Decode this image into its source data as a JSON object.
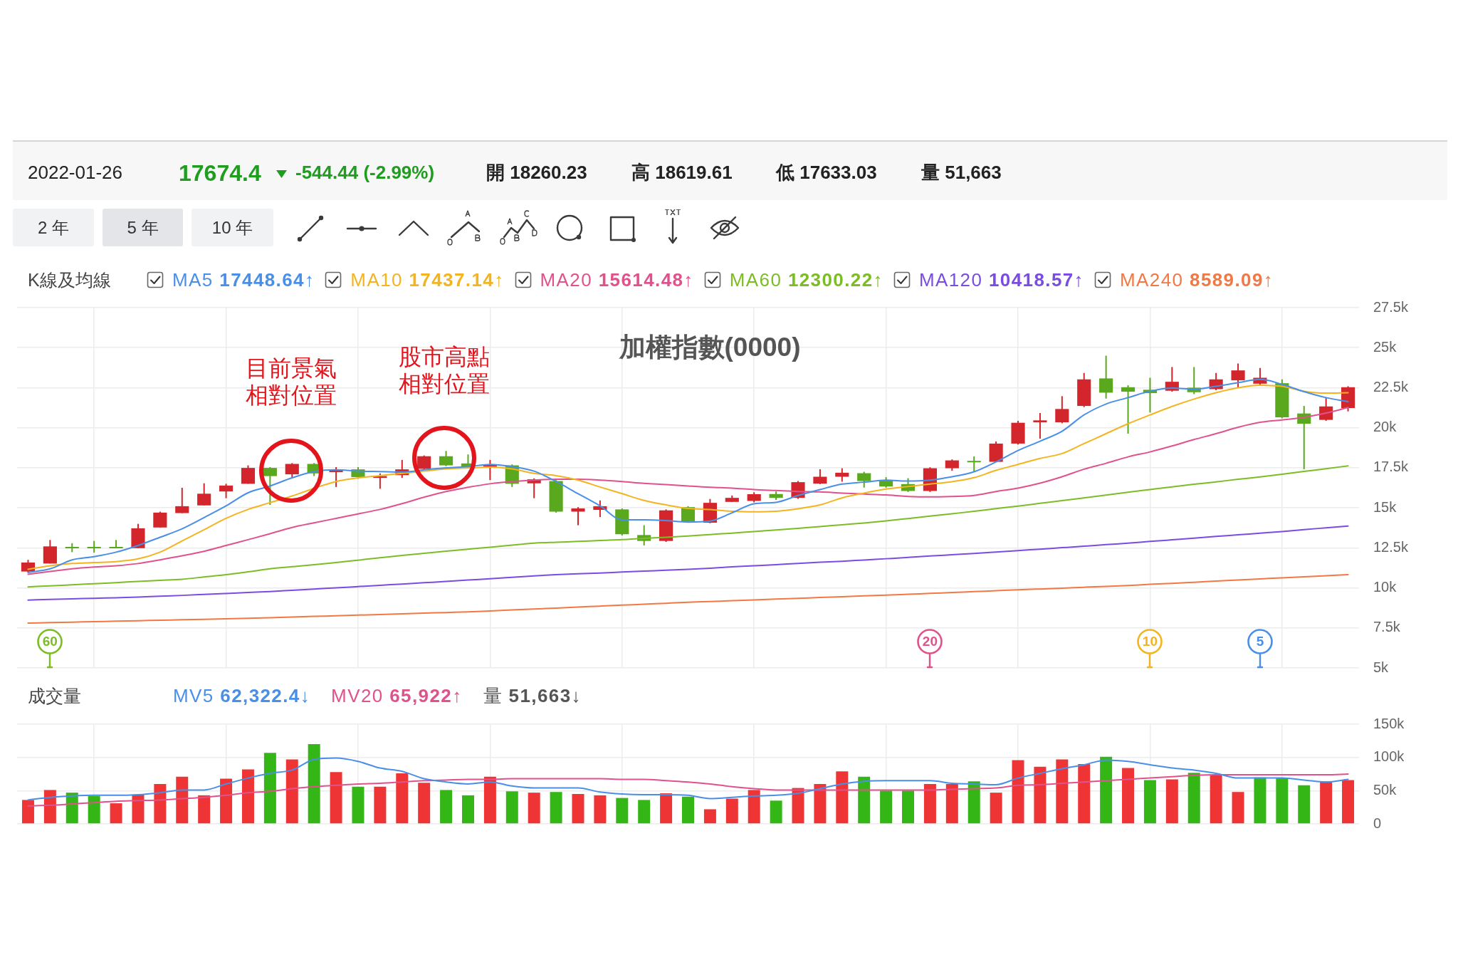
{
  "chart_data": [
    {
      "type": "other",
      "annotations": [
        "2022-01-26",
        "17674.4",
        "-544.44 (-2.99%)",
        "開 18260.23",
        "高 18619.61",
        "低 17633.03",
        "量 51,663",
        "2 年",
        "5 年",
        "10 年"
      ]
    },
    {
      "type": "candlestick",
      "title": "加權指數(0000)",
      "legend_title": "K線及均線",
      "legend": "top left",
      "grid": true,
      "marker": "none",
      "tick_labels": "y",
      "categories": [
        null,
        null,
        null,
        null,
        null,
        null,
        null,
        null,
        null,
        null,
        null,
        null,
        null,
        null,
        null,
        null,
        null,
        null,
        null,
        null,
        null,
        null,
        null,
        null,
        null,
        null,
        null,
        null,
        null,
        null,
        null,
        null,
        null,
        null,
        null,
        null,
        null,
        null,
        null,
        null,
        null,
        null,
        null,
        null,
        null,
        null,
        null,
        null,
        null,
        null,
        null,
        null,
        null,
        null,
        null,
        null,
        null,
        null,
        null,
        null,
        null
      ],
      "ohlc": [
        [
          11020,
          11750,
          10960,
          11580
        ],
        [
          11520,
          12990,
          11520,
          12590
        ],
        [
          12560,
          12790,
          12230,
          12500
        ],
        [
          12560,
          12930,
          12200,
          12500
        ],
        [
          12560,
          12990,
          12480,
          12500
        ],
        [
          12480,
          14000,
          12480,
          13720
        ],
        [
          13770,
          14760,
          13770,
          14700
        ],
        [
          14670,
          16250,
          14670,
          15100
        ],
        [
          15150,
          16530,
          15150,
          15880
        ],
        [
          16020,
          16500,
          15600,
          16390
        ],
        [
          16500,
          17650,
          16500,
          17490
        ],
        [
          17490,
          17540,
          15180,
          16980
        ],
        [
          17090,
          17790,
          16870,
          17740
        ],
        [
          17740,
          17790,
          16980,
          17150
        ],
        [
          17230,
          17540,
          16300,
          17370
        ],
        [
          17400,
          17540,
          16810,
          16920
        ],
        [
          16870,
          17150,
          16190,
          16980
        ],
        [
          17040,
          17990,
          16870,
          17400
        ],
        [
          17430,
          18270,
          17370,
          18220
        ],
        [
          18220,
          18550,
          17600,
          17650
        ],
        [
          17770,
          18330,
          17490,
          17540
        ],
        [
          17570,
          17990,
          16730,
          17710
        ],
        [
          17650,
          17710,
          16300,
          16500
        ],
        [
          16530,
          16840,
          15600,
          16780
        ],
        [
          16670,
          16730,
          14700,
          14760
        ],
        [
          14760,
          15040,
          13910,
          14960
        ],
        [
          14870,
          15460,
          14420,
          15100
        ],
        [
          14900,
          14960,
          13270,
          13350
        ],
        [
          13300,
          13910,
          12650,
          12930
        ],
        [
          12930,
          14900,
          12870,
          14840
        ],
        [
          15040,
          15100,
          14080,
          14140
        ],
        [
          14070,
          15550,
          14040,
          15310
        ],
        [
          15370,
          15770,
          15370,
          15620
        ],
        [
          15430,
          15970,
          15340,
          15850
        ],
        [
          15860,
          16020,
          15490,
          15620
        ],
        [
          15620,
          16670,
          15560,
          16600
        ],
        [
          16510,
          17410,
          16480,
          16940
        ],
        [
          16940,
          17470,
          16630,
          17190
        ],
        [
          17160,
          17250,
          16260,
          16670
        ],
        [
          16730,
          16910,
          16260,
          16330
        ],
        [
          16480,
          16850,
          15990,
          16050
        ],
        [
          16050,
          17530,
          15990,
          17470
        ],
        [
          17470,
          18020,
          17310,
          17960
        ],
        [
          17930,
          18210,
          17250,
          17870
        ],
        [
          17870,
          19140,
          17870,
          19010
        ],
        [
          19010,
          20430,
          18950,
          20310
        ],
        [
          20340,
          20920,
          19320,
          20460
        ],
        [
          20340,
          21970,
          20280,
          21170
        ],
        [
          21360,
          23420,
          21290,
          23020
        ],
        [
          23080,
          24500,
          21820,
          22190
        ],
        [
          22530,
          22650,
          19630,
          22250
        ],
        [
          22370,
          23120,
          20950,
          22160
        ],
        [
          22310,
          23790,
          22250,
          22870
        ],
        [
          22500,
          23790,
          22100,
          22220
        ],
        [
          22410,
          23420,
          22340,
          23020
        ],
        [
          22960,
          24010,
          22500,
          23580
        ],
        [
          22750,
          23730,
          22650,
          23120
        ],
        [
          22780,
          23020,
          20590,
          20650
        ],
        [
          20890,
          21360,
          17410,
          20250
        ],
        [
          20490,
          21850,
          20430,
          21330
        ],
        [
          21230,
          22590,
          21020,
          22530
        ]
      ],
      "colors": [
        "#d3262c",
        "#d3262c",
        "#5aa81e",
        "#5aa81e",
        "#5aa81e",
        "#d3262c",
        "#d3262c",
        "#d3262c",
        "#d3262c",
        "#d3262c",
        "#d3262c",
        "#5aa81e",
        "#d3262c",
        "#5aa81e",
        "#d3262c",
        "#5aa81e",
        "#d3262c",
        "#d3262c",
        "#d3262c",
        "#5aa81e",
        "#5aa81e",
        "#d3262c",
        "#5aa81e",
        "#d3262c",
        "#5aa81e",
        "#d3262c",
        "#d3262c",
        "#5aa81e",
        "#5aa81e",
        "#d3262c",
        "#5aa81e",
        "#d3262c",
        "#d3262c",
        "#d3262c",
        "#5aa81e",
        "#d3262c",
        "#d3262c",
        "#d3262c",
        "#5aa81e",
        "#5aa81e",
        "#5aa81e",
        "#d3262c",
        "#d3262c",
        "#5aa81e",
        "#d3262c",
        "#d3262c",
        "#d3262c",
        "#d3262c",
        "#d3262c",
        "#5aa81e",
        "#5aa81e",
        "#5aa81e",
        "#d3262c",
        "#5aa81e",
        "#d3262c",
        "#d3262c",
        "#d3262c",
        "#5aa81e",
        "#5aa81e",
        "#d3262c",
        "#d3262c"
      ],
      "series": [
        {
          "name": "MA5 17448.64↑",
          "type": "line",
          "color": "#4a8fe7",
          "values": [
            10960,
            11190,
            11750,
            11950,
            12230,
            12650,
            13160,
            13690,
            14390,
            15120,
            15940,
            16360,
            16870,
            17260,
            17370,
            17290,
            17260,
            17230,
            17370,
            17490,
            17570,
            17710,
            17570,
            17290,
            16640,
            15880,
            15120,
            14250,
            14250,
            14200,
            14110,
            14170,
            14690,
            15250,
            15340,
            15770,
            16140,
            16480,
            16600,
            16730,
            16670,
            16730,
            16940,
            17250,
            17870,
            18580,
            19160,
            19780,
            20800,
            21480,
            21880,
            22280,
            22470,
            22410,
            22590,
            22810,
            23020,
            22710,
            22250,
            21880,
            21630
          ]
        },
        {
          "name": "MA10 17437.14↑",
          "type": "line",
          "color": "#f3b41f",
          "values": [
            11160,
            11380,
            11520,
            11580,
            11640,
            11810,
            12230,
            12930,
            13630,
            14340,
            14900,
            15320,
            15740,
            16220,
            16640,
            16870,
            17010,
            17150,
            17290,
            17430,
            17490,
            17540,
            17430,
            17150,
            17010,
            16730,
            16300,
            15880,
            15460,
            15180,
            14960,
            14890,
            14780,
            14750,
            14780,
            14940,
            15180,
            15620,
            15920,
            16170,
            16330,
            16480,
            16630,
            16880,
            17340,
            17710,
            18080,
            18390,
            19010,
            19630,
            20250,
            20800,
            21330,
            21790,
            22190,
            22500,
            22650,
            22590,
            22280,
            22160,
            22190
          ]
        },
        {
          "name": "MA20 15614.48↑",
          "type": "line",
          "color": "#e0528c",
          "values": [
            10850,
            11020,
            11190,
            11300,
            11380,
            11520,
            11750,
            12000,
            12280,
            12650,
            13010,
            13380,
            13770,
            14060,
            14340,
            14620,
            14900,
            15260,
            15660,
            16020,
            16280,
            16500,
            16640,
            16730,
            16780,
            16780,
            16730,
            16640,
            16530,
            16450,
            16360,
            16280,
            16230,
            16140,
            16080,
            16020,
            15990,
            15920,
            15860,
            15800,
            15710,
            15680,
            15710,
            15770,
            16020,
            16230,
            16540,
            16940,
            17410,
            17780,
            18180,
            18490,
            18860,
            19260,
            19630,
            20030,
            20340,
            20490,
            20650,
            20920,
            21260
          ]
        },
        {
          "name": "MA60 12300.22↑",
          "type": "line",
          "color": "#7cbd25",
          "values": [
            10060,
            10130,
            10190,
            10260,
            10330,
            10400,
            10470,
            10540,
            10680,
            10820,
            11000,
            11190,
            11320,
            11450,
            11580,
            11730,
            11880,
            12030,
            12160,
            12290,
            12420,
            12540,
            12670,
            12790,
            12850,
            12900,
            12960,
            13010,
            13090,
            13160,
            13240,
            13330,
            13420,
            13520,
            13610,
            13720,
            13830,
            13940,
            14050,
            14180,
            14330,
            14480,
            14630,
            14780,
            14950,
            15110,
            15280,
            15450,
            15620,
            15790,
            15970,
            16140,
            16310,
            16470,
            16620,
            16780,
            16930,
            17090,
            17270,
            17440,
            17620
          ]
        },
        {
          "name": "MA120 10418.57↑",
          "type": "line",
          "color": "#7a4de0",
          "values": [
            9240,
            9280,
            9310,
            9350,
            9380,
            9420,
            9480,
            9530,
            9590,
            9650,
            9710,
            9770,
            9850,
            9930,
            10000,
            10080,
            10160,
            10240,
            10320,
            10400,
            10490,
            10570,
            10660,
            10750,
            10820,
            10880,
            10930,
            10990,
            11050,
            11100,
            11160,
            11230,
            11310,
            11380,
            11450,
            11530,
            11600,
            11660,
            11740,
            11820,
            11900,
            11990,
            12070,
            12150,
            12240,
            12330,
            12420,
            12510,
            12600,
            12700,
            12790,
            12900,
            13000,
            13100,
            13210,
            13310,
            13420,
            13520,
            13640,
            13750,
            13860
          ]
        },
        {
          "name": "MA240 8589.09↑",
          "type": "line",
          "color": "#f27844",
          "values": [
            7800,
            7830,
            7860,
            7890,
            7920,
            7950,
            7980,
            8010,
            8040,
            8070,
            8100,
            8140,
            8180,
            8220,
            8260,
            8300,
            8340,
            8380,
            8420,
            8460,
            8500,
            8560,
            8620,
            8680,
            8740,
            8800,
            8860,
            8920,
            8980,
            9040,
            9100,
            9150,
            9200,
            9250,
            9300,
            9350,
            9400,
            9450,
            9500,
            9550,
            9600,
            9660,
            9710,
            9770,
            9820,
            9880,
            9930,
            9980,
            10040,
            10090,
            10150,
            10220,
            10280,
            10350,
            10420,
            10490,
            10560,
            10630,
            10690,
            10760,
            10830
          ]
        }
      ],
      "ylim": [
        5000,
        27500
      ],
      "yticks": [
        {
          "value": 5000,
          "label": "5k"
        },
        {
          "value": 7500,
          "label": "7.5k"
        },
        {
          "value": 10000,
          "label": "10k"
        },
        {
          "value": 12500,
          "label": "12.5k"
        },
        {
          "value": 15000,
          "label": "15k"
        },
        {
          "value": 17500,
          "label": "17.5k"
        },
        {
          "value": 20000,
          "label": "20k"
        },
        {
          "value": 22500,
          "label": "22.5k"
        },
        {
          "value": 25000,
          "label": "25k"
        },
        {
          "value": 27500,
          "label": "27.5k"
        }
      ],
      "annotations": [
        "目前景氣相對位置",
        "股市高點相對位置",
        "60",
        "20",
        "10",
        "5"
      ]
    },
    {
      "type": "bar",
      "legend_title": "成交量",
      "legend": "top left",
      "grid": true,
      "marker": "none",
      "tick_labels": "y",
      "categories": [
        null,
        null,
        null,
        null,
        null,
        null,
        null,
        null,
        null,
        null,
        null,
        null,
        null,
        null,
        null,
        null,
        null,
        null,
        null,
        null,
        null,
        null,
        null,
        null,
        null,
        null,
        null,
        null,
        null,
        null,
        null,
        null,
        null,
        null,
        null,
        null,
        null,
        null,
        null,
        null,
        null,
        null,
        null,
        null,
        null,
        null,
        null,
        null,
        null,
        null,
        null,
        null,
        null,
        null,
        null,
        null,
        null,
        null,
        null,
        null,
        null
      ],
      "series": [
        {
          "type": "bar",
          "values": [
            36000,
            51000,
            47000,
            42000,
            31000,
            44000,
            60000,
            71000,
            43000,
            68000,
            82000,
            107000,
            97000,
            120000,
            78000,
            56000,
            56000,
            76000,
            62000,
            51000,
            43000,
            71000,
            49000,
            47000,
            48000,
            45000,
            43000,
            39000,
            36000,
            46000,
            41000,
            22000,
            38000,
            51000,
            35000,
            54000,
            60000,
            79000,
            71000,
            50000,
            50000,
            60000,
            60000,
            64000,
            47000,
            96000,
            86000,
            97000,
            90000,
            101000,
            84000,
            66000,
            67000,
            77000,
            73000,
            48000,
            70000,
            69000,
            58000,
            64000,
            66000
          ],
          "colors": [
            "#ee3434",
            "#ee3434",
            "#34b716",
            "#34b716",
            "#ee3434",
            "#ee3434",
            "#ee3434",
            "#ee3434",
            "#ee3434",
            "#ee3434",
            "#ee3434",
            "#34b716",
            "#ee3434",
            "#34b716",
            "#ee3434",
            "#34b716",
            "#ee3434",
            "#ee3434",
            "#ee3434",
            "#34b716",
            "#34b716",
            "#ee3434",
            "#34b716",
            "#ee3434",
            "#34b716",
            "#ee3434",
            "#ee3434",
            "#34b716",
            "#34b716",
            "#ee3434",
            "#34b716",
            "#ee3434",
            "#ee3434",
            "#ee3434",
            "#34b716",
            "#ee3434",
            "#ee3434",
            "#ee3434",
            "#34b716",
            "#34b716",
            "#34b716",
            "#ee3434",
            "#ee3434",
            "#34b716",
            "#ee3434",
            "#ee3434",
            "#ee3434",
            "#ee3434",
            "#ee3434",
            "#34b716",
            "#ee3434",
            "#34b716",
            "#ee3434",
            "#34b716",
            "#ee3434",
            "#ee3434",
            "#34b716",
            "#34b716",
            "#34b716",
            "#ee3434",
            "#ee3434"
          ]
        },
        {
          "name": "MV5 62,322.4↓",
          "type": "line",
          "color": "#4a8fe7",
          "values": [
            36000,
            40000,
            42000,
            43000,
            43000,
            44000,
            47000,
            51000,
            51000,
            60000,
            69000,
            76000,
            81000,
            97000,
            99000,
            94000,
            84000,
            79000,
            68000,
            63000,
            60000,
            63000,
            57000,
            54000,
            54000,
            54000,
            48000,
            45000,
            44000,
            44000,
            43000,
            38000,
            40000,
            42000,
            43000,
            46000,
            53000,
            60000,
            64000,
            65000,
            65000,
            65000,
            61000,
            60000,
            59000,
            69000,
            76000,
            83000,
            89000,
            96000,
            94000,
            89000,
            84000,
            81000,
            76000,
            69000,
            69000,
            69000,
            66000,
            63000,
            67000
          ]
        },
        {
          "name": "MV20 65,922↑",
          "type": "line",
          "color": "#e0528c",
          "values": [
            27000,
            28000,
            30000,
            32000,
            34000,
            35000,
            36000,
            38000,
            40000,
            43000,
            47000,
            49000,
            53000,
            56000,
            58000,
            60000,
            61000,
            63000,
            65000,
            66000,
            67000,
            67000,
            68000,
            68000,
            68000,
            68000,
            68000,
            67000,
            67000,
            65000,
            63000,
            60000,
            56000,
            53000,
            51000,
            51000,
            51000,
            51000,
            51000,
            51000,
            51000,
            51000,
            52000,
            53000,
            54000,
            58000,
            59000,
            61000,
            63000,
            65000,
            67000,
            69000,
            71000,
            73000,
            74000,
            74000,
            74000,
            74000,
            74000,
            74000,
            75000
          ]
        }
      ],
      "ylim": [
        0,
        150000
      ],
      "yticks": [
        0,
        {
          "value": 50000,
          "label": "50k"
        },
        {
          "value": 100000,
          "label": "100k"
        },
        {
          "value": 150000,
          "label": "150k"
        }
      ],
      "annotations": [
        "量 51,663↓"
      ]
    }
  ]
}
